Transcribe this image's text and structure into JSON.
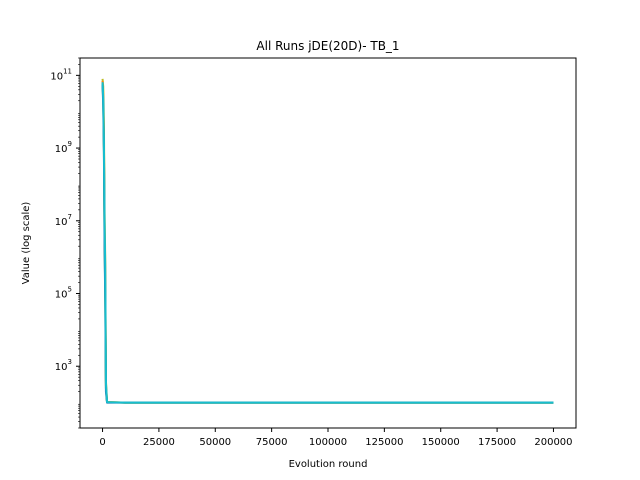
{
  "chart_data": {
    "type": "line",
    "title": "All Runs jDE(20D)- TB_1",
    "xlabel": "Evolution round",
    "ylabel": "Value (log scale)",
    "xlim": [
      -10000,
      210000
    ],
    "ylim": [
      20,
      300000000000
    ],
    "yscale": "log",
    "grid": false,
    "x_ticks": [
      {
        "value": 0,
        "label": "0"
      },
      {
        "value": 25000,
        "label": "25000"
      },
      {
        "value": 50000,
        "label": "50000"
      },
      {
        "value": 75000,
        "label": "75000"
      },
      {
        "value": 100000,
        "label": "100000"
      },
      {
        "value": 125000,
        "label": "125000"
      },
      {
        "value": 150000,
        "label": "150000"
      },
      {
        "value": 175000,
        "label": "175000"
      },
      {
        "value": 200000,
        "label": "200000"
      }
    ],
    "y_ticks": [
      {
        "value": 1000,
        "base": "10",
        "exp": "3"
      },
      {
        "value": 100000,
        "base": "10",
        "exp": "5"
      },
      {
        "value": 10000000,
        "base": "10",
        "exp": "7"
      },
      {
        "value": 1000000000,
        "base": "10",
        "exp": "9"
      },
      {
        "value": 100000000000,
        "base": "10",
        "exp": "11"
      }
    ],
    "series": [
      {
        "color": "#bcbd22",
        "points": [
          [
            0,
            80000000000
          ],
          [
            300,
            50000000000
          ],
          [
            600,
            5000000000
          ],
          [
            900,
            20000000
          ],
          [
            1200,
            800000
          ],
          [
            1500,
            400
          ],
          [
            2000,
            105
          ],
          [
            10000,
            100
          ],
          [
            200000,
            100
          ]
        ]
      },
      {
        "color": "#ff7f0e",
        "points": [
          [
            0,
            70000000000
          ],
          [
            300,
            30000000000
          ],
          [
            600,
            2000000000
          ],
          [
            900,
            5000000
          ],
          [
            1200,
            300000
          ],
          [
            1500,
            300
          ],
          [
            2000,
            102
          ],
          [
            10000,
            100
          ],
          [
            200000,
            100
          ]
        ]
      },
      {
        "color": "#2ca02c",
        "points": [
          [
            0,
            60000000000
          ],
          [
            300,
            20000000000
          ],
          [
            600,
            1000000000
          ],
          [
            900,
            3000000
          ],
          [
            1200,
            100000
          ],
          [
            1500,
            250
          ],
          [
            2000,
            101
          ],
          [
            10000,
            100
          ],
          [
            200000,
            100
          ]
        ]
      },
      {
        "color": "#1f77b4",
        "points": [
          [
            0,
            55000000000
          ],
          [
            300,
            15000000000
          ],
          [
            600,
            800000000
          ],
          [
            900,
            2000000
          ],
          [
            1200,
            60000
          ],
          [
            1500,
            200
          ],
          [
            2000,
            100
          ],
          [
            10000,
            100
          ],
          [
            200000,
            100
          ]
        ]
      },
      {
        "color": "#17becf",
        "points": [
          [
            0,
            65000000000
          ],
          [
            300,
            25000000000
          ],
          [
            600,
            1500000000
          ],
          [
            900,
            10000000
          ],
          [
            1200,
            500000
          ],
          [
            1500,
            350
          ],
          [
            2000,
            103
          ],
          [
            10000,
            100
          ],
          [
            200000,
            100
          ]
        ]
      }
    ]
  }
}
